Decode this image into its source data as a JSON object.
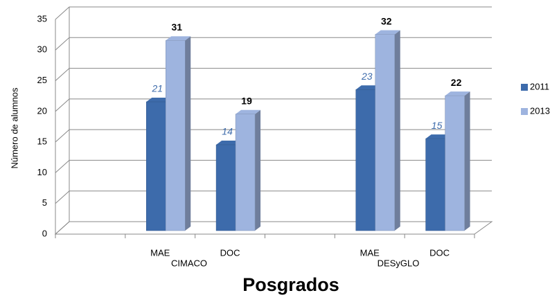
{
  "chart_data": {
    "type": "bar3d",
    "y_label": "Número de alumnos",
    "x_label": "Posgrados",
    "categories": [
      null,
      "MAE",
      "DOC",
      null,
      "MAE",
      "DOC"
    ],
    "groups": [
      "CIMACO",
      "DESyGLO"
    ],
    "series": [
      {
        "name": "2011",
        "color": "#3d6bab",
        "values": [
          null,
          21,
          14,
          null,
          23,
          15
        ]
      },
      {
        "name": "2013",
        "color": "#9eb4df",
        "values": [
          null,
          31,
          19,
          null,
          32,
          22
        ]
      }
    ],
    "ylim": [
      0,
      35
    ],
    "yticks": [
      0,
      5,
      10,
      15,
      20,
      25,
      30,
      35
    ],
    "grid": true,
    "legend": "right"
  }
}
